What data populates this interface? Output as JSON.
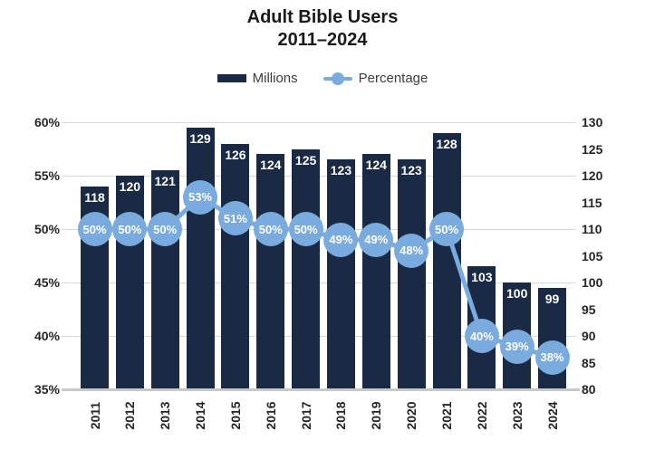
{
  "title": {
    "line1": "Adult Bible Users",
    "line2": "2011–2024"
  },
  "legend": {
    "position": "top",
    "items": [
      {
        "label": "Millions",
        "marker": "bar-swatch"
      },
      {
        "label": "Percentage",
        "marker": "line-dot"
      }
    ]
  },
  "colors": {
    "bar": "#1a2a45",
    "line": "#7aabde",
    "grid": "#d9d9d9",
    "axis_baseline": "#c9c9c9",
    "title_text": "#1a1a1a",
    "axis_text": "#262626",
    "legend_text": "#3d3d3d",
    "label_on_bar": "#ffffff",
    "label_on_point": "#ffffff",
    "background": "#ffffff"
  },
  "chart_data": {
    "type": "bar",
    "subtype": "combo-bar-line-dual-axis",
    "title": "Adult Bible Users 2011–2024",
    "categories": [
      "2011",
      "2012",
      "2013",
      "2014",
      "2015",
      "2016",
      "2017",
      "2018",
      "2019",
      "2020",
      "2021",
      "2022",
      "2023",
      "2024"
    ],
    "series": [
      {
        "name": "Millions",
        "type": "bar",
        "axis": "right",
        "values": [
          118,
          120,
          121,
          129,
          126,
          124,
          125,
          123,
          124,
          123,
          128,
          103,
          100,
          99
        ],
        "labels": [
          "118",
          "120",
          "121",
          "129",
          "126",
          "124",
          "125",
          "123",
          "124",
          "123",
          "128",
          "103",
          "100",
          "99"
        ]
      },
      {
        "name": "Percentage",
        "type": "line",
        "axis": "left",
        "unit": "%",
        "values": [
          50,
          50,
          50,
          53,
          51,
          50,
          50,
          49,
          49,
          48,
          50,
          40,
          39,
          38
        ],
        "labels": [
          "50%",
          "50%",
          "50%",
          "53%",
          "51%",
          "50%",
          "50%",
          "49%",
          "49%",
          "48%",
          "50%",
          "40%",
          "39%",
          "38%"
        ]
      }
    ],
    "axes": {
      "left": {
        "min": 35,
        "max": 60,
        "step": 5,
        "unit": "%",
        "ticks": [
          "35%",
          "40%",
          "45%",
          "50%",
          "55%",
          "60%"
        ]
      },
      "right": {
        "min": 80,
        "max": 130,
        "step": 5,
        "ticks": [
          "80",
          "85",
          "90",
          "95",
          "100",
          "105",
          "110",
          "115",
          "120",
          "125",
          "130"
        ]
      }
    },
    "grid": {
      "horizontal": true,
      "at_left_axis_values": [
        40,
        45,
        50,
        55,
        60
      ]
    },
    "legend_position": "top",
    "xlabel": "",
    "ylabel_left": "",
    "ylabel_right": ""
  }
}
